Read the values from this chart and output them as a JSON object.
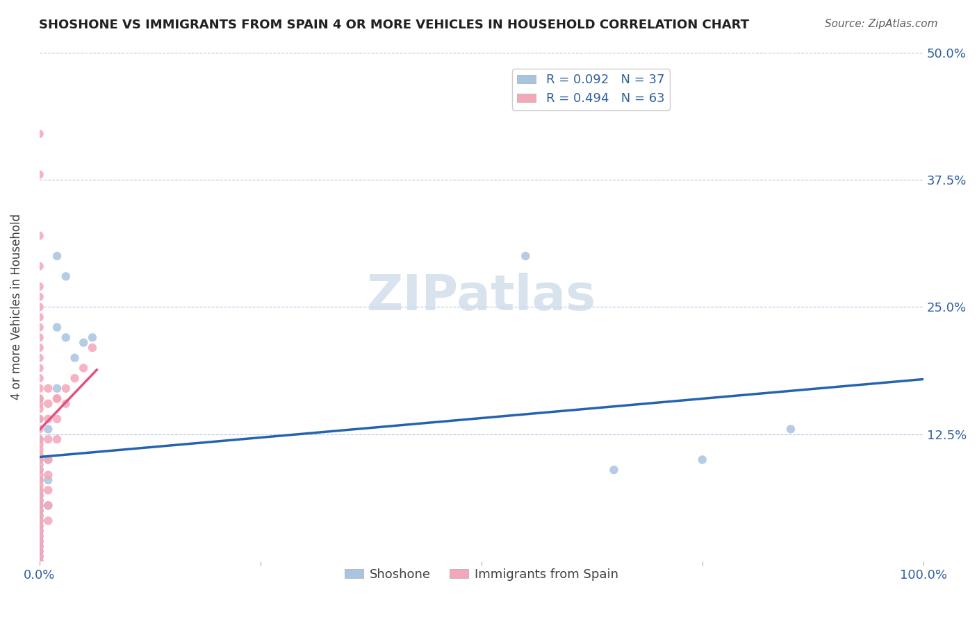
{
  "title": "SHOSHONE VS IMMIGRANTS FROM SPAIN 4 OR MORE VEHICLES IN HOUSEHOLD CORRELATION CHART",
  "source_text": "Source: ZipAtlas.com",
  "ylabel": "4 or more Vehicles in Household",
  "xlim": [
    0,
    1.0
  ],
  "ylim": [
    0,
    0.5
  ],
  "ytick_positions": [
    0.0,
    0.125,
    0.25,
    0.375,
    0.5
  ],
  "ytick_labels_right": [
    "",
    "12.5%",
    "25.0%",
    "37.5%",
    "50.0%"
  ],
  "legend_r1": "R = 0.092",
  "legend_n1": "N = 37",
  "legend_r2": "R = 0.494",
  "legend_n2": "N = 63",
  "shoshone_color": "#a8c4e0",
  "spain_color": "#f4a7b9",
  "trendline_shoshone_color": "#2563b0",
  "trendline_spain_color": "#e05080",
  "trendline_spain_dashed_color": "#c8a8b0",
  "watermark_color": "#c8d8e8",
  "background_color": "#ffffff",
  "shoshone_points": [
    [
      0.0,
      0.16
    ],
    [
      0.0,
      0.14
    ],
    [
      0.0,
      0.12
    ],
    [
      0.0,
      0.1
    ],
    [
      0.0,
      0.09
    ],
    [
      0.0,
      0.08
    ],
    [
      0.0,
      0.07
    ],
    [
      0.0,
      0.065
    ],
    [
      0.0,
      0.06
    ],
    [
      0.0,
      0.055
    ],
    [
      0.0,
      0.05
    ],
    [
      0.0,
      0.045
    ],
    [
      0.0,
      0.04
    ],
    [
      0.0,
      0.035
    ],
    [
      0.0,
      0.03
    ],
    [
      0.0,
      0.025
    ],
    [
      0.0,
      0.02
    ],
    [
      0.0,
      0.015
    ],
    [
      0.0,
      0.01
    ],
    [
      0.0,
      0.005
    ],
    [
      0.0,
      0.0
    ],
    [
      0.01,
      0.13
    ],
    [
      0.01,
      0.1
    ],
    [
      0.01,
      0.08
    ],
    [
      0.01,
      0.055
    ],
    [
      0.02,
      0.17
    ],
    [
      0.02,
      0.23
    ],
    [
      0.02,
      0.3
    ],
    [
      0.03,
      0.22
    ],
    [
      0.03,
      0.28
    ],
    [
      0.04,
      0.2
    ],
    [
      0.05,
      0.215
    ],
    [
      0.06,
      0.22
    ],
    [
      0.55,
      0.3
    ],
    [
      0.65,
      0.09
    ],
    [
      0.75,
      0.1
    ],
    [
      0.85,
      0.13
    ]
  ],
  "spain_points": [
    [
      0.0,
      0.42
    ],
    [
      0.0,
      0.38
    ],
    [
      0.0,
      0.32
    ],
    [
      0.0,
      0.29
    ],
    [
      0.0,
      0.27
    ],
    [
      0.0,
      0.26
    ],
    [
      0.0,
      0.25
    ],
    [
      0.0,
      0.24
    ],
    [
      0.0,
      0.23
    ],
    [
      0.0,
      0.22
    ],
    [
      0.0,
      0.21
    ],
    [
      0.0,
      0.2
    ],
    [
      0.0,
      0.19
    ],
    [
      0.0,
      0.18
    ],
    [
      0.0,
      0.17
    ],
    [
      0.0,
      0.16
    ],
    [
      0.0,
      0.155
    ],
    [
      0.0,
      0.15
    ],
    [
      0.0,
      0.14
    ],
    [
      0.0,
      0.13
    ],
    [
      0.0,
      0.12
    ],
    [
      0.0,
      0.115
    ],
    [
      0.0,
      0.11
    ],
    [
      0.0,
      0.105
    ],
    [
      0.0,
      0.1
    ],
    [
      0.0,
      0.095
    ],
    [
      0.0,
      0.09
    ],
    [
      0.0,
      0.085
    ],
    [
      0.0,
      0.08
    ],
    [
      0.0,
      0.075
    ],
    [
      0.0,
      0.07
    ],
    [
      0.0,
      0.065
    ],
    [
      0.0,
      0.06
    ],
    [
      0.0,
      0.055
    ],
    [
      0.0,
      0.05
    ],
    [
      0.0,
      0.045
    ],
    [
      0.0,
      0.04
    ],
    [
      0.0,
      0.035
    ],
    [
      0.0,
      0.03
    ],
    [
      0.0,
      0.025
    ],
    [
      0.0,
      0.02
    ],
    [
      0.0,
      0.015
    ],
    [
      0.0,
      0.01
    ],
    [
      0.0,
      0.005
    ],
    [
      0.0,
      0.0
    ],
    [
      0.01,
      0.17
    ],
    [
      0.01,
      0.155
    ],
    [
      0.01,
      0.14
    ],
    [
      0.01,
      0.12
    ],
    [
      0.01,
      0.1
    ],
    [
      0.01,
      0.085
    ],
    [
      0.01,
      0.07
    ],
    [
      0.01,
      0.055
    ],
    [
      0.01,
      0.04
    ],
    [
      0.02,
      0.16
    ],
    [
      0.02,
      0.14
    ],
    [
      0.02,
      0.12
    ],
    [
      0.02,
      0.16
    ],
    [
      0.03,
      0.155
    ],
    [
      0.03,
      0.17
    ],
    [
      0.04,
      0.18
    ],
    [
      0.05,
      0.19
    ],
    [
      0.06,
      0.21
    ]
  ]
}
